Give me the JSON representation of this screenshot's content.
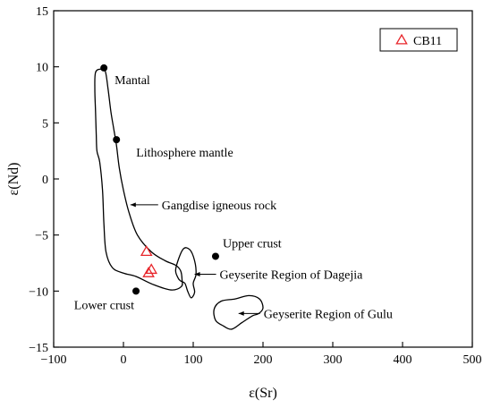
{
  "chart_data": {
    "type": "scatter",
    "title": "",
    "xlabel": "ε(Sr)",
    "ylabel": "ε(Nd)",
    "xlim": [
      -100,
      500
    ],
    "ylim": [
      -15,
      15
    ],
    "xticks": [
      -100,
      0,
      100,
      200,
      300,
      400,
      500
    ],
    "yticks": [
      15,
      10,
      5,
      0,
      -5,
      -10,
      -15
    ],
    "grid": false,
    "legend": {
      "position": "top-right",
      "entries": [
        "CB11"
      ]
    },
    "reference_points": [
      {
        "label": "Mantal",
        "x": -28,
        "y": 9.9
      },
      {
        "label": "Lithosphere mantle",
        "x": -10,
        "y": 3.5
      },
      {
        "label": "Upper crust",
        "x": 132,
        "y": -6.9
      },
      {
        "label": "Lower crust",
        "x": 18,
        "y": -10
      }
    ],
    "series": [
      {
        "name": "CB11",
        "marker": "triangle",
        "color": "#e8262b",
        "points": [
          {
            "x": 33,
            "y": -6.5
          },
          {
            "x": 40,
            "y": -8.1
          },
          {
            "x": 36,
            "y": -8.4
          }
        ]
      }
    ],
    "regions": [
      {
        "label": "Gangdise igneous rock",
        "outline": [
          [
            -40,
            9.5
          ],
          [
            -32,
            9.8
          ],
          [
            -26,
            9.6
          ],
          [
            -22,
            8
          ],
          [
            -18,
            6
          ],
          [
            -14,
            4.5
          ],
          [
            -10,
            3
          ],
          [
            -6,
            1
          ],
          [
            0,
            -1
          ],
          [
            8,
            -3
          ],
          [
            20,
            -5
          ],
          [
            40,
            -6.5
          ],
          [
            60,
            -7.3
          ],
          [
            75,
            -7.7
          ],
          [
            82,
            -8.2
          ],
          [
            84,
            -9
          ],
          [
            83,
            -9.6
          ],
          [
            68,
            -9.9
          ],
          [
            42,
            -9.4
          ],
          [
            18,
            -8.7
          ],
          [
            0,
            -8.4
          ],
          [
            -16,
            -7.9
          ],
          [
            -25,
            -6.5
          ],
          [
            -28,
            -4
          ],
          [
            -30,
            -1
          ],
          [
            -34,
            1.5
          ],
          [
            -38,
            2.5
          ],
          [
            -39,
            4
          ],
          [
            -40,
            6
          ],
          [
            -41,
            8
          ]
        ],
        "label_at": [
          10,
          -2.3
        ]
      },
      {
        "label": "Geyserite Region of Dagejia",
        "outline": [
          [
            75,
            -8
          ],
          [
            85,
            -6.3
          ],
          [
            95,
            -6.3
          ],
          [
            102,
            -7.3
          ],
          [
            104,
            -8.5
          ],
          [
            100,
            -9.3
          ],
          [
            102,
            -10.1
          ],
          [
            97,
            -10.6
          ],
          [
            92,
            -10
          ],
          [
            88,
            -9.3
          ],
          [
            82,
            -9.1
          ],
          [
            78,
            -8.8
          ]
        ],
        "label_at": [
          102,
          -8.5
        ]
      },
      {
        "label": "Geyserite Region of Gulu",
        "outline": [
          [
            130,
            -11.6
          ],
          [
            140,
            -10.9
          ],
          [
            160,
            -10.7
          ],
          [
            180,
            -10.4
          ],
          [
            195,
            -10.7
          ],
          [
            200,
            -11.5
          ],
          [
            194,
            -12
          ],
          [
            185,
            -12.2
          ],
          [
            170,
            -12.8
          ],
          [
            155,
            -13.4
          ],
          [
            143,
            -13.1
          ],
          [
            132,
            -12.6
          ]
        ],
        "label_at": [
          165,
          -12
        ]
      }
    ]
  }
}
